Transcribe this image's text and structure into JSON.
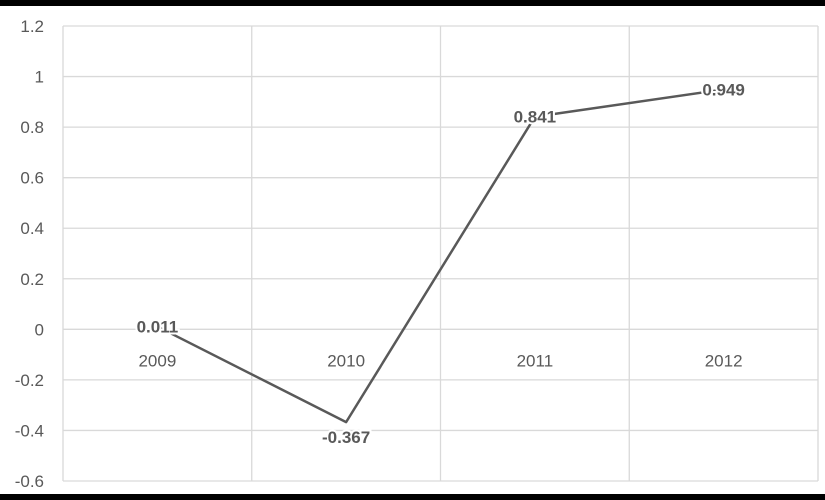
{
  "chart_data": {
    "type": "line",
    "categories": [
      "2009",
      "2010",
      "2011",
      "2012"
    ],
    "series": [
      {
        "values": [
          0.011,
          -0.367,
          0.841,
          0.949
        ],
        "data_labels": [
          "0.011",
          "-0.367",
          "0.841",
          "0.949"
        ],
        "color": "#595959"
      }
    ],
    "ylim": [
      -0.6,
      1.2
    ],
    "y_ticks": [
      1.2,
      1,
      0.8,
      0.6,
      0.4,
      0.2,
      0,
      -0.2,
      -0.4,
      -0.6
    ],
    "y_tick_labels": [
      "1.2",
      "1",
      "0.8",
      "0.6",
      "0.4",
      "0.2",
      "0",
      "-0.2",
      "-0.4",
      "-0.6"
    ],
    "grid": true,
    "vertical_gridlines": true,
    "category_labels_position": "at-zero-line",
    "legend": "none",
    "colors": {
      "background": "#FFFFFF",
      "frame": "#000000",
      "grid": "#D9D9D9",
      "line": "#595959",
      "text": "#595959"
    }
  }
}
